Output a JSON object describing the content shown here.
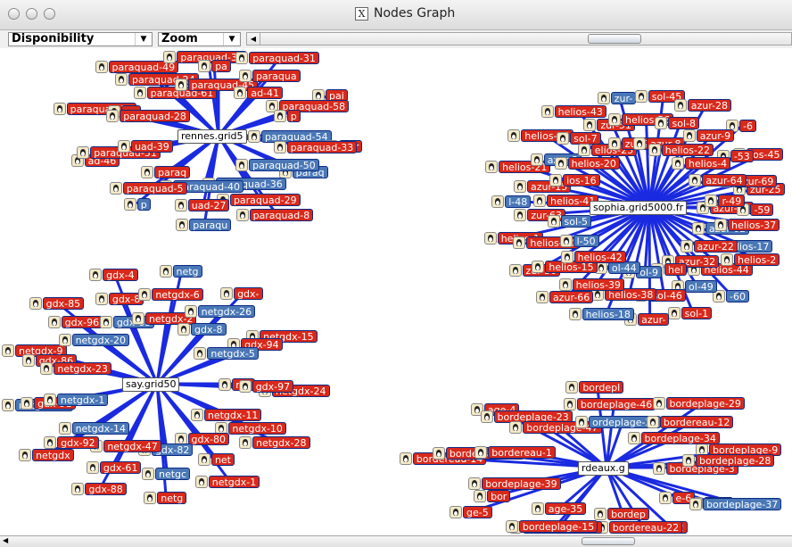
{
  "window": {
    "title": "Nodes Graph"
  },
  "toolbar": {
    "disponibility_value": "Disponibility",
    "zoom_value": "Zoom"
  },
  "colors": {
    "node_red": "#d9291b",
    "node_blue": "#4a78b7",
    "edge": "#1a2ae0"
  },
  "clusters": [
    {
      "hub": "rennes.grid5",
      "nodes": [
        {
          "t": "paraquad-54",
          "c": "b"
        },
        {
          "t": "paraq",
          "c": "b"
        },
        {
          "t": "paraquad-8",
          "c": "r"
        },
        {
          "t": "paraquad-50",
          "c": "b"
        },
        {
          "t": "paraquad-29",
          "c": "r"
        },
        {
          "t": "paraqu",
          "c": "b"
        },
        {
          "t": "paraquad-36",
          "c": "b"
        },
        {
          "t": "uad-27",
          "c": "r"
        },
        {
          "t": "p",
          "c": "b"
        },
        {
          "t": "paraquad-40",
          "c": "b"
        },
        {
          "t": "paraquad-5",
          "c": "r"
        },
        {
          "t": "ad-46",
          "c": "r"
        },
        {
          "t": "paraq",
          "c": "r"
        },
        {
          "t": "paraquad-51",
          "c": "r"
        },
        {
          "t": "paraquad-30",
          "c": "r"
        },
        {
          "t": "uad-39",
          "c": "r"
        },
        {
          "t": "pa",
          "c": "r"
        },
        {
          "t": "paraquad-49",
          "c": "r"
        },
        {
          "t": "paraquad-28",
          "c": "r"
        },
        {
          "t": "paraquad-24",
          "c": "r"
        },
        {
          "t": "paraquad-34",
          "c": "r"
        },
        {
          "t": "paraquad-61",
          "c": "r"
        },
        {
          "t": "pa",
          "c": "r"
        },
        {
          "t": "paraquad-31",
          "c": "r"
        },
        {
          "t": "paraquad-45",
          "c": "r"
        },
        {
          "t": "paraqua",
          "c": "r"
        },
        {
          "t": "pai",
          "c": "r"
        },
        {
          "t": "ad-41",
          "c": "r"
        },
        {
          "t": "paraquad-58",
          "c": "r"
        },
        {
          "t": "par",
          "c": "r"
        },
        {
          "t": "p",
          "c": "r"
        },
        {
          "t": "paraquad-33",
          "c": "r"
        }
      ]
    },
    {
      "hub": "sophia.grid5000.fr",
      "nodes": [
        {
          "t": "azur-61",
          "c": "r"
        },
        {
          "t": "helios-17",
          "c": "b"
        },
        {
          "t": "-60",
          "c": "b"
        },
        {
          "t": "azur-62",
          "c": "b"
        },
        {
          "t": "helios-44",
          "c": "r"
        },
        {
          "t": "sol-1",
          "c": "r"
        },
        {
          "t": "azur-22",
          "c": "r"
        },
        {
          "t": "ol-49",
          "c": "b"
        },
        {
          "t": "azur-",
          "c": "r"
        },
        {
          "t": "azur-32",
          "c": "r"
        },
        {
          "t": "sol-46",
          "c": "r"
        },
        {
          "t": "helios-18",
          "c": "b"
        },
        {
          "t": "hel",
          "c": "r"
        },
        {
          "t": "helios-38",
          "c": "r"
        },
        {
          "t": "azur-66",
          "c": "r"
        },
        {
          "t": "ol-9",
          "c": "b"
        },
        {
          "t": "helios-39",
          "c": "r"
        },
        {
          "t": "zur-30",
          "c": "r"
        },
        {
          "t": "ol-44",
          "c": "b"
        },
        {
          "t": "helios-15",
          "c": "r"
        },
        {
          "t": "helios-1",
          "c": "r"
        },
        {
          "t": "helios-42",
          "c": "r"
        },
        {
          "t": "helios-40",
          "c": "r"
        },
        {
          "t": "l-48",
          "c": "b"
        },
        {
          "t": "l-50",
          "c": "b"
        },
        {
          "t": "zur-63",
          "c": "r"
        },
        {
          "t": "helios-21",
          "c": "r"
        },
        {
          "t": "sol-5",
          "c": "b"
        },
        {
          "t": "azur-15",
          "c": "r"
        },
        {
          "t": "helios-14",
          "c": "r"
        },
        {
          "t": "helios-41",
          "c": "r"
        },
        {
          "t": "azur-3",
          "c": "b"
        },
        {
          "t": "helios-43",
          "c": "r"
        },
        {
          "t": "ios-16",
          "c": "r"
        },
        {
          "t": "sol-7",
          "c": "r"
        },
        {
          "t": "zur-",
          "c": "b"
        },
        {
          "t": "helios-20",
          "c": "r"
        },
        {
          "t": "zur-51",
          "c": "r"
        },
        {
          "t": "sol-45",
          "c": "r"
        },
        {
          "t": "elios-25",
          "c": "r"
        },
        {
          "t": "helios-36",
          "c": "r"
        },
        {
          "t": "azur-28",
          "c": "r"
        },
        {
          "t": "zur-23",
          "c": "r"
        },
        {
          "t": "sol-8",
          "c": "r"
        },
        {
          "t": "-6",
          "c": "r"
        },
        {
          "t": "azur-8",
          "c": "r"
        },
        {
          "t": "azur-9",
          "c": "r"
        },
        {
          "t": "ios-45",
          "c": "r"
        },
        {
          "t": "helios-22",
          "c": "r"
        },
        {
          "t": "-53",
          "c": "r"
        },
        {
          "t": "zur-25",
          "c": "r"
        },
        {
          "t": "helios-4",
          "c": "r"
        },
        {
          "t": "azur-69",
          "c": "r"
        },
        {
          "t": "helios-37",
          "c": "r"
        },
        {
          "t": "azur-64",
          "c": "r"
        },
        {
          "t": "-59",
          "c": "r"
        },
        {
          "t": "helios-2",
          "c": "r"
        },
        {
          "t": "r-49",
          "c": "r"
        }
      ]
    },
    {
      "hub": "say.grid50",
      "nodes": [
        {
          "t": "net",
          "c": "r"
        },
        {
          "t": "netgdx-10",
          "c": "r"
        },
        {
          "t": "netgdx-1",
          "c": "r"
        },
        {
          "t": "netgdx-11",
          "c": "r"
        },
        {
          "t": "net",
          "c": "r"
        },
        {
          "t": "netg",
          "c": "r"
        },
        {
          "t": "gdx-80",
          "c": "r"
        },
        {
          "t": "netgc",
          "c": "b"
        },
        {
          "t": "gdx-88",
          "c": "r"
        },
        {
          "t": "gdx-82",
          "c": "b"
        },
        {
          "t": "gdx-61",
          "c": "r"
        },
        {
          "t": "netgdx",
          "c": "r"
        },
        {
          "t": "netgdx-47",
          "c": "r"
        },
        {
          "t": "gdx-92",
          "c": "r"
        },
        {
          "t": "netgdx-33",
          "c": "b"
        },
        {
          "t": "netgdx-14",
          "c": "b"
        },
        {
          "t": "gdx-91",
          "c": "r"
        },
        {
          "t": "netgdx-9",
          "c": "r"
        },
        {
          "t": "netgdx-1",
          "c": "b"
        },
        {
          "t": "gdx-86",
          "c": "r"
        },
        {
          "t": "gdx-85",
          "c": "r"
        },
        {
          "t": "netgdx-23",
          "c": "r"
        },
        {
          "t": "gdx-96",
          "c": "r"
        },
        {
          "t": "gdx-4",
          "c": "r"
        },
        {
          "t": "netgdx-20",
          "c": "b"
        },
        {
          "t": "gdx-8",
          "c": "r"
        },
        {
          "t": "netg",
          "c": "b"
        },
        {
          "t": "gdx-83",
          "c": "b"
        },
        {
          "t": "netgdx-6",
          "c": "r"
        },
        {
          "t": "gdx-",
          "c": "r"
        },
        {
          "t": "netgdx-2",
          "c": "r"
        },
        {
          "t": "netgdx-26",
          "c": "b"
        },
        {
          "t": "netgdx-15",
          "c": "r"
        },
        {
          "t": "gdx-8",
          "c": "b"
        },
        {
          "t": "gdx-94",
          "c": "r"
        },
        {
          "t": "netgdx-24",
          "c": "r"
        },
        {
          "t": "netgdx-5",
          "c": "b"
        },
        {
          "t": "gdx-97",
          "c": "r"
        },
        {
          "t": "netgdx-28",
          "c": "r"
        }
      ]
    },
    {
      "hub": "rdeaux.g",
      "nodes": [
        {
          "t": "bordeplage-3",
          "c": "r"
        },
        {
          "t": "e-10",
          "c": "r"
        },
        {
          "t": "-12",
          "c": "r"
        },
        {
          "t": "e-6",
          "c": "r"
        },
        {
          "t": "bordereau-22",
          "c": "r"
        },
        {
          "t": "bordeplage-43",
          "c": "r"
        },
        {
          "t": "bordep",
          "c": "r"
        },
        {
          "t": "bordeplage-15",
          "c": "r"
        },
        {
          "t": "ge-5",
          "c": "r"
        },
        {
          "t": "age-35",
          "c": "r"
        },
        {
          "t": "bor",
          "c": "r"
        },
        {
          "t": "bordereau-14",
          "c": "r"
        },
        {
          "t": "bordeplage-39",
          "c": "r"
        },
        {
          "t": "bordeplage-38",
          "c": "r"
        },
        {
          "t": "age-4",
          "c": "r"
        },
        {
          "t": "bordereau-1",
          "c": "r"
        },
        {
          "t": "bordeplage-23",
          "c": "r"
        },
        {
          "t": "bordepl",
          "c": "r"
        },
        {
          "t": "bordeplage-47",
          "c": "r"
        },
        {
          "t": "bordeplage-46",
          "c": "r"
        },
        {
          "t": "bordeplage-29",
          "c": "r"
        },
        {
          "t": "ordeplage-25",
          "c": "b"
        },
        {
          "t": "bordereau-12",
          "c": "r"
        },
        {
          "t": "bordeplage-9",
          "c": "r"
        },
        {
          "t": "bordeplage-34",
          "c": "r"
        },
        {
          "t": "bordeplage-28",
          "c": "r"
        },
        {
          "t": "bordeplage-37",
          "c": "b"
        }
      ]
    }
  ]
}
